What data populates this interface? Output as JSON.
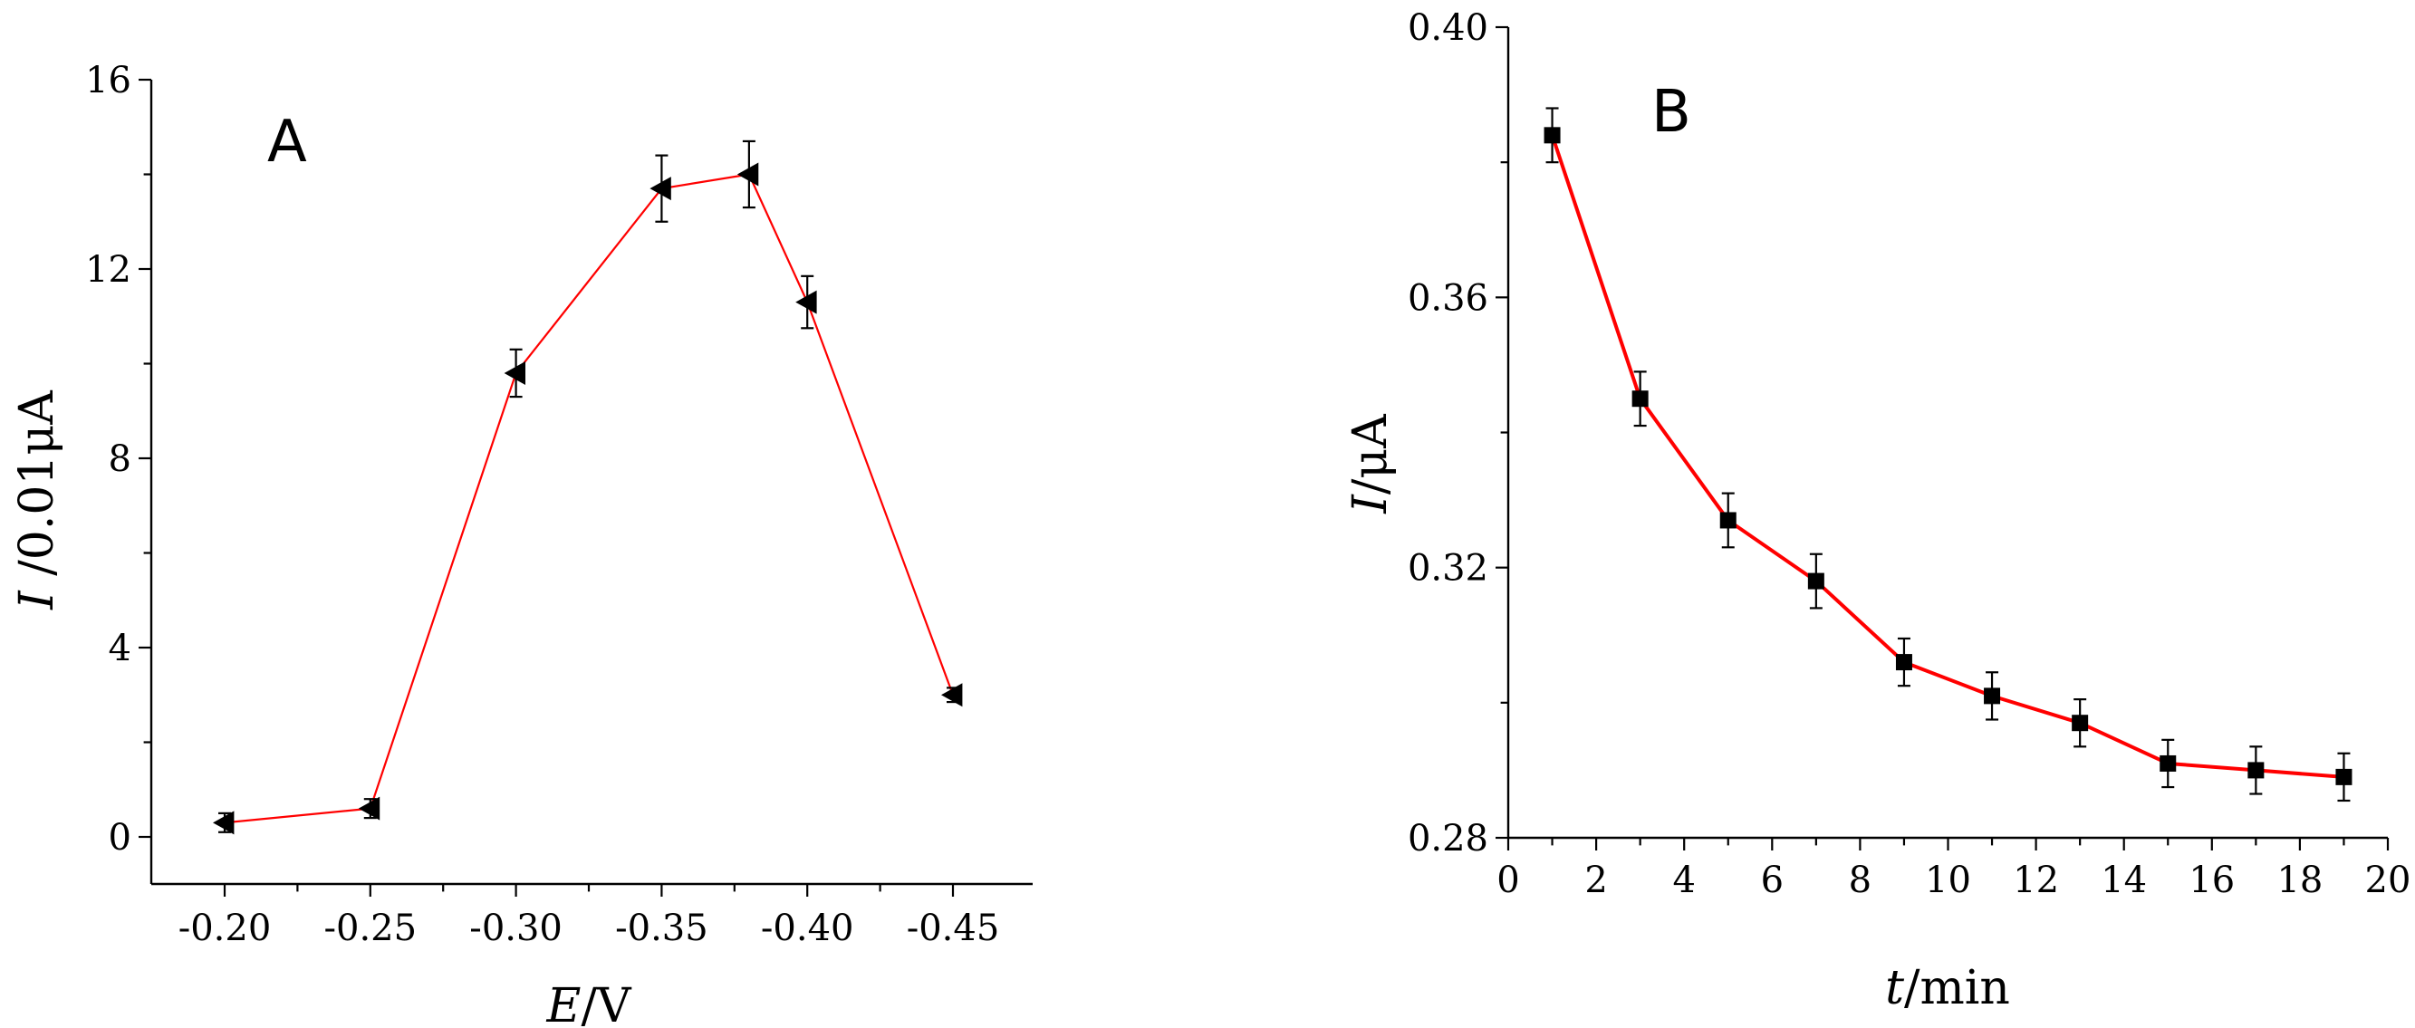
{
  "chart_data": [
    {
      "panel": "A",
      "type": "line",
      "marker": "left-triangle",
      "line_color": "#ff0000",
      "marker_color": "#000000",
      "x": [
        -0.2,
        -0.25,
        -0.3,
        -0.35,
        -0.38,
        -0.4,
        -0.45
      ],
      "values": [
        0.3,
        0.6,
        9.8,
        13.7,
        14.0,
        11.3,
        3.0
      ],
      "errors": [
        0.2,
        0.2,
        0.5,
        0.7,
        0.7,
        0.55,
        0.15
      ],
      "xlim": [
        -0.18,
        -0.47
      ],
      "ylim": [
        -1,
        16
      ],
      "x_ticks": [
        -0.2,
        -0.25,
        -0.3,
        -0.35,
        -0.4,
        -0.45
      ],
      "x_tick_labels": [
        "-0.20",
        "-0.25",
        "-0.30",
        "-0.35",
        "-0.40",
        "-0.45"
      ],
      "y_ticks": [
        0,
        4,
        8,
        12,
        16
      ],
      "y_tick_labels": [
        "0",
        "4",
        "8",
        "12",
        "16"
      ],
      "xlabel_italic": "E",
      "xlabel_rest": "/V",
      "ylabel_italic": "I",
      "ylabel_rest": " /0.01μA",
      "title": "",
      "grid": false
    },
    {
      "panel": "B",
      "type": "line",
      "marker": "square",
      "line_color": "#ff0000",
      "marker_color": "#000000",
      "x": [
        1,
        3,
        5,
        7,
        9,
        11,
        13,
        15,
        17,
        19
      ],
      "values": [
        0.384,
        0.345,
        0.327,
        0.318,
        0.306,
        0.301,
        0.297,
        0.291,
        0.29,
        0.289
      ],
      "errors": [
        0.004,
        0.004,
        0.004,
        0.004,
        0.0035,
        0.0035,
        0.0035,
        0.0035,
        0.0035,
        0.0035
      ],
      "xlim": [
        0,
        20
      ],
      "ylim": [
        0.28,
        0.4
      ],
      "x_ticks": [
        0,
        2,
        4,
        6,
        8,
        10,
        12,
        14,
        16,
        18,
        20
      ],
      "x_tick_labels": [
        "0",
        "2",
        "4",
        "6",
        "8",
        "10",
        "12",
        "14",
        "16",
        "18",
        "20"
      ],
      "y_ticks": [
        0.28,
        0.32,
        0.36,
        0.4
      ],
      "y_tick_labels": [
        "0.28",
        "0.32",
        "0.36",
        "0.40"
      ],
      "xlabel_italic": "t",
      "xlabel_rest": "/min",
      "ylabel_italic": "I",
      "ylabel_rest": "/μA",
      "title": "",
      "grid": false
    }
  ]
}
